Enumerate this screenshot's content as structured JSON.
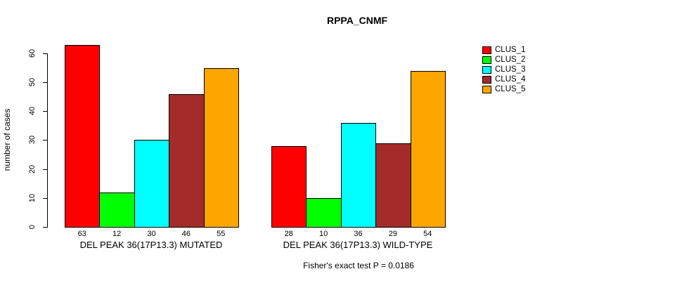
{
  "chart_data": {
    "type": "bar",
    "title": "RPPA_CNMF",
    "ylabel": "number of cases",
    "ylim": [
      0,
      60
    ],
    "yticks": [
      0,
      10,
      20,
      30,
      40,
      50,
      60
    ],
    "grid": false,
    "legend_position": "top-right",
    "categories": [
      "DEL PEAK 36(17P13.3) MUTATED",
      "DEL PEAK 36(17P13.3) WILD-TYPE"
    ],
    "series": [
      {
        "name": "CLUS_1",
        "color": "#FF0000",
        "values": [
          63,
          28
        ]
      },
      {
        "name": "CLUS_2",
        "color": "#00FF00",
        "values": [
          12,
          10
        ]
      },
      {
        "name": "CLUS_3",
        "color": "#00FFFF",
        "values": [
          30,
          36
        ]
      },
      {
        "name": "CLUS_4",
        "color": "#A52A2A",
        "values": [
          46,
          29
        ]
      },
      {
        "name": "CLUS_5",
        "color": "#FFA500",
        "values": [
          55,
          54
        ]
      }
    ],
    "bar_value_labels": [
      [
        63,
        12,
        30,
        46,
        55
      ],
      [
        28,
        10,
        36,
        29,
        54
      ]
    ],
    "footnote": "Fisher's exact test P = 0.0186"
  }
}
